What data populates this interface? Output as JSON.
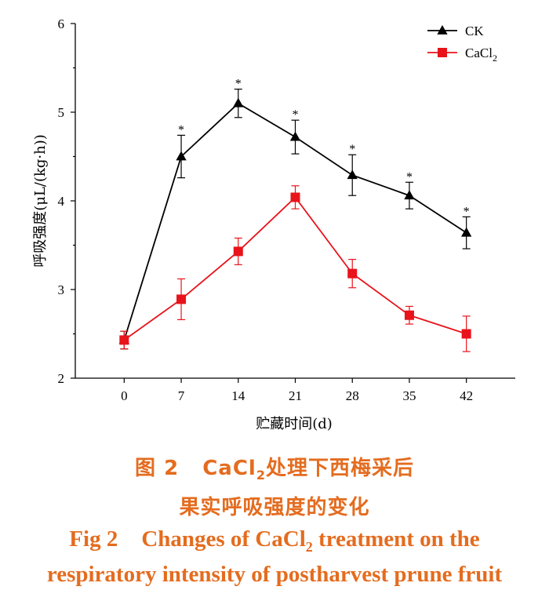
{
  "chart_data": {
    "type": "line",
    "x": [
      0,
      7,
      14,
      21,
      28,
      35,
      42
    ],
    "xlabel": "贮藏时间(d)",
    "ylabel": "呼吸强度(μL/(kg·h))",
    "xticks": [
      "0",
      "7",
      "14",
      "21",
      "28",
      "35",
      "42"
    ],
    "yticks": [
      "2",
      "3",
      "4",
      "5",
      "6"
    ],
    "ylim": [
      2,
      6
    ],
    "grid": false,
    "legend_position": "top-right",
    "series": [
      {
        "name": "CK",
        "subscript": "",
        "color": "#000000",
        "marker": "triangle",
        "values": [
          2.43,
          4.5,
          5.1,
          4.72,
          4.29,
          4.06,
          3.64
        ],
        "errors": [
          0.1,
          0.24,
          0.16,
          0.19,
          0.23,
          0.15,
          0.18
        ],
        "significance": [
          "",
          "*",
          "*",
          "*",
          "*",
          "*",
          "*"
        ]
      },
      {
        "name": "CaCl",
        "subscript": "2",
        "color": "#e8131b",
        "marker": "square",
        "values": [
          2.43,
          2.89,
          3.43,
          4.04,
          3.18,
          2.71,
          2.5
        ],
        "errors": [
          0.1,
          0.23,
          0.15,
          0.13,
          0.16,
          0.1,
          0.2
        ],
        "significance": [
          "",
          "",
          "",
          "",
          "",
          "",
          ""
        ]
      }
    ]
  },
  "caption": {
    "cn_line1_a": "图 2",
    "cn_line1_b1": "CaCl",
    "cn_line1_sub": "2",
    "cn_line1_b2": "处理下西梅采后",
    "cn_line2": "果实呼吸强度的变化",
    "en_line1_a": "Fig 2",
    "en_line1_b1": "Changes of CaCl",
    "en_line1_sub": "2",
    "en_line1_b2": " treatment on the",
    "en_line2": "respiratory intensity of postharvest prune fruit",
    "color": "#e46c1f"
  }
}
